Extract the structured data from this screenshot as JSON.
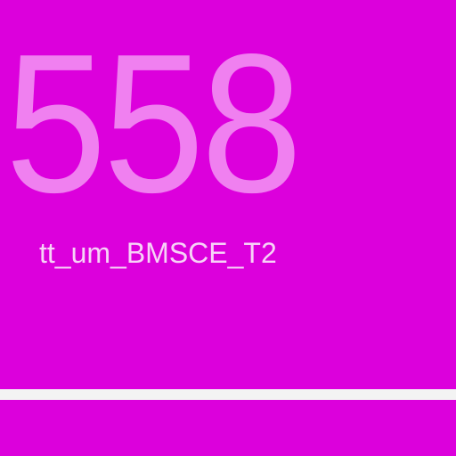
{
  "tile": {
    "value": "558",
    "label": "tt_um_BMSCE_T2",
    "colors": {
      "background": "#dc00dc",
      "number": "#f080f0",
      "label": "#f7d2f7",
      "bar": "#f3f3f3"
    }
  }
}
